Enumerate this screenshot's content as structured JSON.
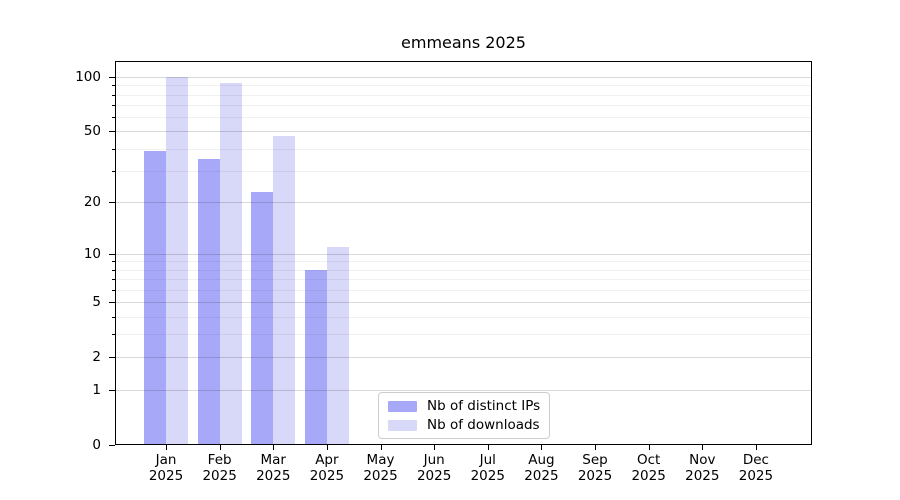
{
  "figure": {
    "title": "emmeans 2025"
  },
  "chart_data": {
    "type": "bar",
    "title": "emmeans 2025",
    "xlabel": "",
    "ylabel": "",
    "x": {
      "months": [
        "Jan",
        "Feb",
        "Mar",
        "Apr",
        "May",
        "Jun",
        "Jul",
        "Aug",
        "Sep",
        "Oct",
        "Nov",
        "Dec"
      ],
      "year": "2025"
    },
    "series": [
      {
        "name": "Nb of distinct IPs",
        "color": "#a8a8f8",
        "values": [
          39,
          35,
          23,
          8,
          null,
          null,
          null,
          null,
          null,
          null,
          null,
          null
        ]
      },
      {
        "name": "Nb of downloads",
        "color": "#d8d8f8",
        "values": [
          100,
          93,
          47,
          11,
          null,
          null,
          null,
          null,
          null,
          null,
          null,
          null
        ]
      }
    ],
    "yscale": "log1p",
    "ylim": [
      0,
      123
    ],
    "y_major_ticks": [
      0,
      1,
      2,
      5,
      10,
      20,
      50,
      100
    ],
    "y_minor_gridlines": [
      3,
      4,
      6,
      7,
      8,
      9,
      30,
      40,
      60,
      70,
      80,
      90
    ],
    "grid": "on",
    "legend": {
      "position": "bottom-center-inside"
    },
    "colors": {
      "background": "#ffffff",
      "spine": "#000000",
      "grid_major": "#d9d9d9",
      "grid_minor": "#ececec",
      "text": "#000000"
    }
  }
}
